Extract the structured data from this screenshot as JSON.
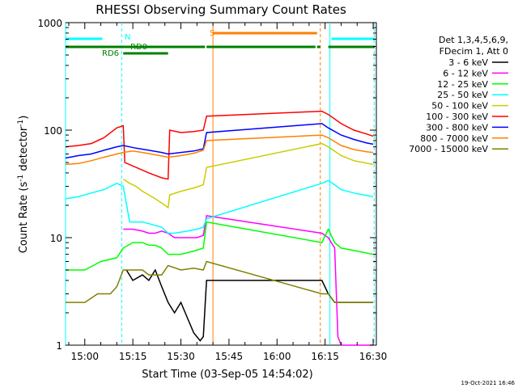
{
  "chart_data": {
    "type": "line",
    "title": "RHESSI Observing Summary Count Rates",
    "xlabel": "Start Time (03-Sep-05 14:54:02)",
    "ylabel_main": "Count Rate (s",
    "ylabel_sup1": "-1",
    "ylabel_mid": " detector",
    "ylabel_sup2": "-1",
    "ylabel_end": ")",
    "yscale": "log",
    "ylim": [
      1,
      1000
    ],
    "xlim_min": [
      894,
      991
    ],
    "x_tick_values": [
      900,
      915,
      930,
      945,
      960,
      975,
      990
    ],
    "x_tick_labels": [
      "15:00",
      "15:15",
      "15:30",
      "15:45",
      "16:00",
      "16:15",
      "16:30"
    ],
    "y_tick_values": [
      1,
      10,
      100,
      1000
    ],
    "y_tick_labels": [
      "1",
      "10",
      "100",
      "1000"
    ],
    "legend_header": [
      "Det 1,3,4,5,6,9,",
      "FDecim 1, Att 0"
    ],
    "timestamp": "19-Oct-2021 16:46",
    "series": [
      {
        "name": "3 - 6 keV",
        "color": "#000000",
        "data": [
          [
            913,
            5
          ],
          [
            915,
            4
          ],
          [
            918,
            4.5
          ],
          [
            920,
            4
          ],
          [
            922,
            5
          ],
          [
            924,
            3.5
          ],
          [
            926,
            2.5
          ],
          [
            928,
            2
          ],
          [
            930,
            2.5
          ],
          [
            932,
            1.8
          ],
          [
            934,
            1.3
          ],
          [
            936,
            1.1
          ],
          [
            937,
            1.2
          ],
          [
            938,
            4
          ],
          [
            974,
            4
          ],
          [
            976,
            3
          ],
          [
            978,
            2.5
          ],
          [
            980,
            2.5
          ],
          [
            984,
            2.5
          ],
          [
            990,
            2.5
          ]
        ]
      },
      {
        "name": "6 - 12 keV",
        "color": "#ff00ff",
        "data": [
          [
            912,
            12
          ],
          [
            915,
            12
          ],
          [
            918,
            11.5
          ],
          [
            920,
            11
          ],
          [
            922,
            11
          ],
          [
            924,
            11.5
          ],
          [
            926,
            11
          ],
          [
            928,
            10
          ],
          [
            932,
            10
          ],
          [
            935,
            10
          ],
          [
            937,
            10.5
          ],
          [
            938,
            16
          ],
          [
            974,
            11
          ],
          [
            976,
            10
          ],
          [
            978,
            8
          ],
          [
            979,
            1.2
          ],
          [
            980,
            1
          ],
          [
            990,
            1
          ]
        ]
      },
      {
        "name": "12 - 25 keV",
        "color": "#00ff00",
        "data": [
          [
            894,
            5
          ],
          [
            900,
            5
          ],
          [
            905,
            6
          ],
          [
            910,
            6.5
          ],
          [
            912,
            8
          ],
          [
            915,
            9
          ],
          [
            918,
            9
          ],
          [
            920,
            8.5
          ],
          [
            922,
            8.5
          ],
          [
            924,
            8
          ],
          [
            926,
            7
          ],
          [
            930,
            7
          ],
          [
            934,
            7.5
          ],
          [
            937,
            8
          ],
          [
            938,
            14
          ],
          [
            974,
            9
          ],
          [
            976,
            12
          ],
          [
            978,
            9
          ],
          [
            980,
            8
          ],
          [
            985,
            7.5
          ],
          [
            990,
            7
          ]
        ]
      },
      {
        "name": "25 - 50 keV",
        "color": "#00ffff",
        "data": [
          [
            894,
            23
          ],
          [
            898,
            24
          ],
          [
            902,
            26
          ],
          [
            906,
            28
          ],
          [
            910,
            32
          ],
          [
            912,
            30
          ],
          [
            914,
            14
          ],
          [
            916,
            14
          ],
          [
            918,
            14
          ],
          [
            920,
            13.5
          ],
          [
            922,
            13
          ],
          [
            924,
            12.5
          ],
          [
            926,
            11
          ],
          [
            928,
            11
          ],
          [
            932,
            11.5
          ],
          [
            935,
            12
          ],
          [
            937,
            12.5
          ],
          [
            938,
            15
          ],
          [
            974,
            32
          ],
          [
            976,
            34
          ],
          [
            978,
            31
          ],
          [
            980,
            28
          ],
          [
            984,
            26
          ],
          [
            987,
            25
          ],
          [
            990,
            24
          ]
        ]
      },
      {
        "name": "50 - 100 keV",
        "color": "#cccc00",
        "data": [
          [
            912,
            35
          ],
          [
            914,
            32
          ],
          [
            916,
            30
          ],
          [
            918,
            27
          ],
          [
            920,
            25
          ],
          [
            922,
            23
          ],
          [
            924,
            21
          ],
          [
            926,
            19
          ],
          [
            926.5,
            25
          ],
          [
            930,
            27
          ],
          [
            934,
            29
          ],
          [
            937,
            31
          ],
          [
            938,
            45
          ],
          [
            974,
            75
          ],
          [
            976,
            70
          ],
          [
            980,
            58
          ],
          [
            984,
            52
          ],
          [
            990,
            48
          ]
        ]
      },
      {
        "name": "100 - 300 keV",
        "color": "#ff0000",
        "data": [
          [
            894,
            70
          ],
          [
            898,
            72
          ],
          [
            902,
            75
          ],
          [
            906,
            85
          ],
          [
            910,
            105
          ],
          [
            912,
            110
          ],
          [
            912.5,
            50
          ],
          [
            916,
            45
          ],
          [
            920,
            40
          ],
          [
            924,
            36
          ],
          [
            926,
            35
          ],
          [
            926.5,
            100
          ],
          [
            930,
            95
          ],
          [
            934,
            97
          ],
          [
            937,
            100
          ],
          [
            938,
            135
          ],
          [
            974,
            150
          ],
          [
            976,
            140
          ],
          [
            980,
            115
          ],
          [
            984,
            100
          ],
          [
            988,
            92
          ],
          [
            990,
            88
          ]
        ]
      },
      {
        "name": "300 - 800 keV",
        "color": "#0000ff",
        "data": [
          [
            894,
            55
          ],
          [
            898,
            58
          ],
          [
            902,
            60
          ],
          [
            906,
            65
          ],
          [
            910,
            70
          ],
          [
            912,
            72
          ],
          [
            916,
            68
          ],
          [
            920,
            65
          ],
          [
            924,
            62
          ],
          [
            926,
            60
          ],
          [
            930,
            62
          ],
          [
            934,
            64
          ],
          [
            937,
            67
          ],
          [
            938,
            95
          ],
          [
            974,
            115
          ],
          [
            976,
            105
          ],
          [
            980,
            90
          ],
          [
            984,
            82
          ],
          [
            988,
            76
          ],
          [
            990,
            74
          ]
        ]
      },
      {
        "name": "800 - 7000 keV",
        "color": "#ff8000",
        "data": [
          [
            894,
            48
          ],
          [
            898,
            49
          ],
          [
            902,
            52
          ],
          [
            906,
            56
          ],
          [
            910,
            60
          ],
          [
            912,
            62
          ],
          [
            915,
            64
          ],
          [
            918,
            62
          ],
          [
            922,
            59
          ],
          [
            926,
            56
          ],
          [
            930,
            58
          ],
          [
            934,
            61
          ],
          [
            937,
            65
          ],
          [
            938,
            80
          ],
          [
            974,
            90
          ],
          [
            976,
            85
          ],
          [
            980,
            72
          ],
          [
            984,
            66
          ],
          [
            988,
            63
          ],
          [
            990,
            62
          ]
        ]
      },
      {
        "name": "7000 - 15000 keV",
        "color": "#808000",
        "data": [
          [
            894,
            2.5
          ],
          [
            900,
            2.5
          ],
          [
            904,
            3
          ],
          [
            908,
            3
          ],
          [
            910,
            3.5
          ],
          [
            912,
            5
          ],
          [
            915,
            5
          ],
          [
            918,
            5
          ],
          [
            920,
            4.5
          ],
          [
            924,
            4.5
          ],
          [
            926,
            5.5
          ],
          [
            930,
            5
          ],
          [
            934,
            5.2
          ],
          [
            937,
            5
          ],
          [
            938,
            6
          ],
          [
            974,
            3
          ],
          [
            976,
            3
          ],
          [
            978,
            2.5
          ],
          [
            980,
            2.5
          ],
          [
            984,
            2.5
          ],
          [
            990,
            2.5
          ]
        ]
      }
    ],
    "flags": {
      "s_label": "S",
      "n_label": "N",
      "rd0_label": "RD0",
      "rd6_label": "RD6"
    }
  }
}
